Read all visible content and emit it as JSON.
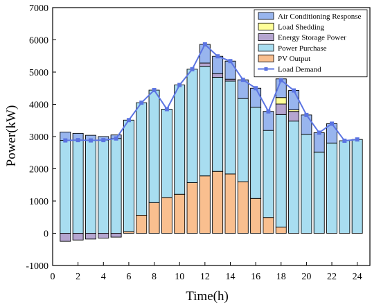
{
  "chart_data": {
    "type": "bar",
    "stacked": true,
    "title": "",
    "xlabel": "Time(h)",
    "ylabel": "Power(kW)",
    "xlim": [
      0,
      25
    ],
    "ylim": [
      -1000,
      7000
    ],
    "xticks": [
      0,
      2,
      4,
      6,
      8,
      10,
      12,
      14,
      16,
      18,
      20,
      22,
      24
    ],
    "yticks": [
      -1000,
      0,
      1000,
      2000,
      3000,
      4000,
      5000,
      6000,
      7000
    ],
    "grid": false,
    "legend_position": "top-right",
    "categories": [
      1,
      2,
      3,
      4,
      5,
      6,
      7,
      8,
      9,
      10,
      11,
      12,
      13,
      14,
      15,
      16,
      17,
      18,
      19,
      20,
      21,
      22,
      23,
      24
    ],
    "series": [
      {
        "name": "PV Output",
        "type": "bar",
        "color": "#f9bf8f",
        "values": [
          0,
          0,
          0,
          0,
          0,
          50,
          560,
          950,
          1110,
          1210,
          1570,
          1780,
          1920,
          1840,
          1600,
          1080,
          490,
          190,
          0,
          0,
          0,
          0,
          0,
          0
        ]
      },
      {
        "name": "Power Purchase",
        "type": "bar",
        "color": "#a8ddf0",
        "values": [
          2880,
          2890,
          2880,
          2890,
          2940,
          3460,
          3490,
          3490,
          2740,
          3390,
          3520,
          3400,
          2920,
          2880,
          2580,
          2830,
          2700,
          3490,
          3480,
          3070,
          2520,
          2800,
          2870,
          2910
        ]
      },
      {
        "name": "Energy Storage Power",
        "type": "bar",
        "color": "#b5a5d0",
        "values": [
          -250,
          -210,
          -180,
          -150,
          -120,
          0,
          0,
          0,
          0,
          0,
          0,
          100,
          110,
          60,
          0,
          0,
          0,
          330,
          300,
          0,
          0,
          0,
          0,
          0
        ]
      },
      {
        "name": "Load Shedding",
        "type": "bar",
        "color": "#ffff99",
        "values": [
          0,
          0,
          0,
          0,
          0,
          0,
          0,
          0,
          0,
          0,
          0,
          0,
          0,
          0,
          0,
          0,
          0,
          200,
          50,
          0,
          0,
          0,
          0,
          0
        ]
      },
      {
        "name": "Air Conditioning Response",
        "type": "bar",
        "color": "#98b5ee",
        "values": [
          260,
          210,
          160,
          110,
          110,
          0,
          0,
          0,
          0,
          0,
          0,
          580,
          540,
          560,
          580,
          590,
          590,
          580,
          600,
          600,
          600,
          600,
          0,
          0
        ]
      },
      {
        "name": "Load Demand",
        "type": "line",
        "color": "#5b74e2",
        "values": [
          2880,
          2890,
          2880,
          2890,
          2940,
          3510,
          4050,
          4440,
          3850,
          4600,
          5090,
          5860,
          5490,
          5340,
          4760,
          4500,
          3780,
          4750,
          4430,
          3670,
          3120,
          3400,
          2870,
          2910
        ]
      }
    ]
  }
}
